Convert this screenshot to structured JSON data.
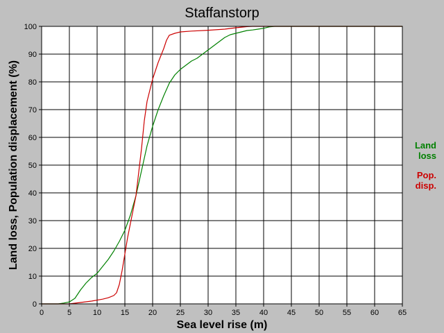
{
  "chart_data": {
    "type": "line",
    "title": "Staffanstorp",
    "xlabel": "Sea level rise (m)",
    "ylabel": "Land loss, Population displacement (%)",
    "xlim": [
      0,
      65
    ],
    "ylim": [
      0,
      100
    ],
    "x_ticks": [
      "0",
      "5",
      "10",
      "15",
      "20",
      "25",
      "30",
      "35",
      "40",
      "45",
      "50",
      "55",
      "60",
      "65"
    ],
    "y_ticks": [
      "0",
      "10",
      "20",
      "30",
      "40",
      "50",
      "60",
      "70",
      "80",
      "90",
      "100"
    ],
    "grid": true,
    "legend_position": "right",
    "series": [
      {
        "name": "Land loss",
        "legend_lines": [
          "Land",
          "loss"
        ],
        "color": "#008000",
        "points": [
          [
            0,
            0
          ],
          [
            3,
            0
          ],
          [
            4,
            0.3
          ],
          [
            5,
            0.7
          ],
          [
            6,
            2
          ],
          [
            7,
            5
          ],
          [
            8,
            7.5
          ],
          [
            9,
            9.5
          ],
          [
            10,
            11
          ],
          [
            11,
            13.5
          ],
          [
            12,
            16
          ],
          [
            13,
            19
          ],
          [
            14,
            22.5
          ],
          [
            15,
            26.5
          ],
          [
            16,
            32
          ],
          [
            17,
            39
          ],
          [
            18,
            48
          ],
          [
            19,
            57
          ],
          [
            20,
            64
          ],
          [
            21,
            70
          ],
          [
            22,
            75
          ],
          [
            23,
            79.5
          ],
          [
            24,
            82.5
          ],
          [
            25,
            84.5
          ],
          [
            26,
            86
          ],
          [
            27,
            87.5
          ],
          [
            28,
            88.5
          ],
          [
            29,
            90
          ],
          [
            30,
            91.5
          ],
          [
            31,
            93
          ],
          [
            32,
            94.5
          ],
          [
            33,
            96
          ],
          [
            34,
            97
          ],
          [
            35,
            97.5
          ],
          [
            36,
            98
          ],
          [
            37,
            98.5
          ],
          [
            38,
            98.7
          ],
          [
            39,
            99
          ],
          [
            40,
            99.3
          ],
          [
            41,
            99.8
          ],
          [
            42,
            100
          ],
          [
            65,
            100
          ]
        ]
      },
      {
        "name": "Pop. disp.",
        "legend_lines": [
          "Pop.",
          "disp."
        ],
        "color": "#cc0000",
        "points": [
          [
            0,
            0
          ],
          [
            5,
            0
          ],
          [
            7,
            0.5
          ],
          [
            9,
            1
          ],
          [
            11,
            1.7
          ],
          [
            12,
            2.2
          ],
          [
            13,
            3
          ],
          [
            13.5,
            4
          ],
          [
            14,
            7
          ],
          [
            14.5,
            12
          ],
          [
            15,
            18
          ],
          [
            15.5,
            24
          ],
          [
            16,
            29
          ],
          [
            17,
            39
          ],
          [
            18,
            56
          ],
          [
            18.5,
            66
          ],
          [
            19,
            73
          ],
          [
            20,
            81
          ],
          [
            21,
            87
          ],
          [
            22,
            92
          ],
          [
            22.5,
            95
          ],
          [
            23,
            96.8
          ],
          [
            24,
            97.5
          ],
          [
            25,
            98
          ],
          [
            27,
            98.3
          ],
          [
            30,
            98.6
          ],
          [
            33,
            99
          ],
          [
            35,
            99.5
          ],
          [
            37,
            99.9
          ],
          [
            38,
            100
          ],
          [
            65,
            100
          ]
        ]
      }
    ]
  }
}
